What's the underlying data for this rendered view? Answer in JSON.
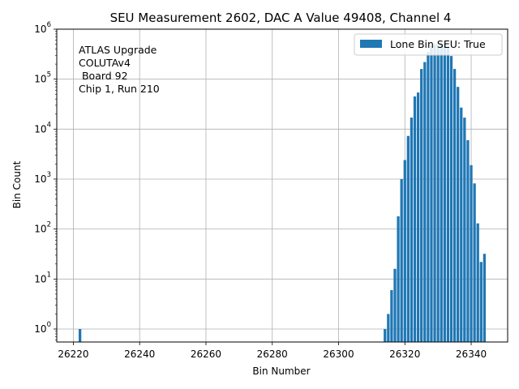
{
  "chart_data": {
    "type": "bar",
    "title": "SEU Measurement 2602, DAC A Value 49408, Channel 4",
    "xlabel": "Bin Number",
    "ylabel": "Bin Count",
    "xlim": [
      26215,
      26351
    ],
    "ylim": [
      0.55,
      1000000
    ],
    "yscale": "log",
    "grid": true,
    "xticks": [
      26220,
      26240,
      26260,
      26280,
      26300,
      26320,
      26340
    ],
    "yticks": [
      {
        "value": 1,
        "base": "10",
        "exp": "0"
      },
      {
        "value": 10,
        "base": "10",
        "exp": "1"
      },
      {
        "value": 100,
        "base": "10",
        "exp": "2"
      },
      {
        "value": 1000,
        "base": "10",
        "exp": "3"
      },
      {
        "value": 10000,
        "base": "10",
        "exp": "4"
      },
      {
        "value": 100000,
        "base": "10",
        "exp": "5"
      },
      {
        "value": 1000000,
        "base": "10",
        "exp": "6"
      }
    ],
    "bar_color": "#1f77b4",
    "legend": {
      "location": "top-right",
      "entries": [
        "Lone Bin SEU: True"
      ]
    },
    "annotation": [
      "ATLAS Upgrade",
      "COLUTAv4",
      " Board 92",
      "Chip 1, Run 210"
    ],
    "bins": [
      26222,
      26314,
      26315,
      26316,
      26317,
      26318,
      26319,
      26320,
      26321,
      26322,
      26323,
      26324,
      26325,
      26326,
      26327,
      26328,
      26329,
      26330,
      26331,
      26332,
      26333,
      26334,
      26335,
      26336,
      26337,
      26338,
      26339,
      26340,
      26341,
      26342,
      26343,
      26344
    ],
    "counts": [
      1,
      1,
      2,
      6,
      16,
      180,
      1000,
      2400,
      7300,
      17000,
      45000,
      54000,
      160000,
      220000,
      350000,
      470000,
      500000,
      500000,
      520000,
      520000,
      450000,
      290000,
      160000,
      70000,
      27000,
      17000,
      6000,
      1900,
      820,
      130,
      22,
      32
    ]
  }
}
